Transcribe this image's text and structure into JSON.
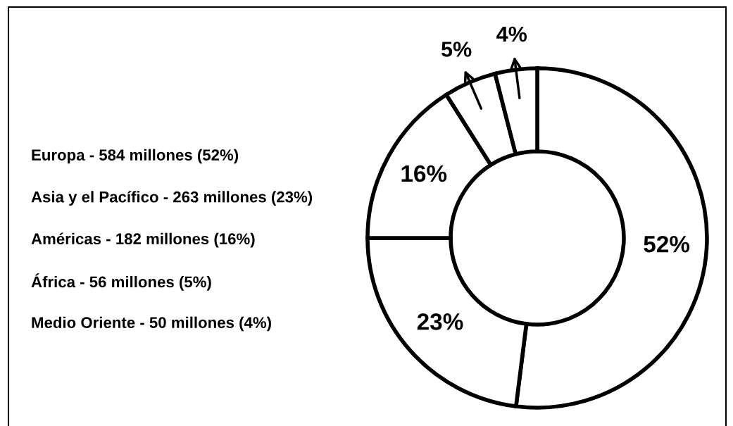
{
  "chart_data": {
    "type": "donut",
    "categories": [
      null,
      null,
      null,
      null,
      null
    ],
    "values": [
      52,
      23,
      16,
      5,
      4
    ],
    "value_labels": [
      "52%",
      "23%",
      "16%",
      "5%",
      "4%"
    ],
    "colors": [
      "#ffffff",
      "#ffffff",
      "#ffffff",
      "#ffffff",
      "#ffffff"
    ],
    "annotations": [
      "Europa - 584 millones (52%)",
      "Asia y el Pacífico - 263 millones (23%)",
      "Américas - 182 millones (16%)",
      "África - 56 millones (5%)",
      "Medio Oriente - 50 millones (4%)"
    ]
  }
}
